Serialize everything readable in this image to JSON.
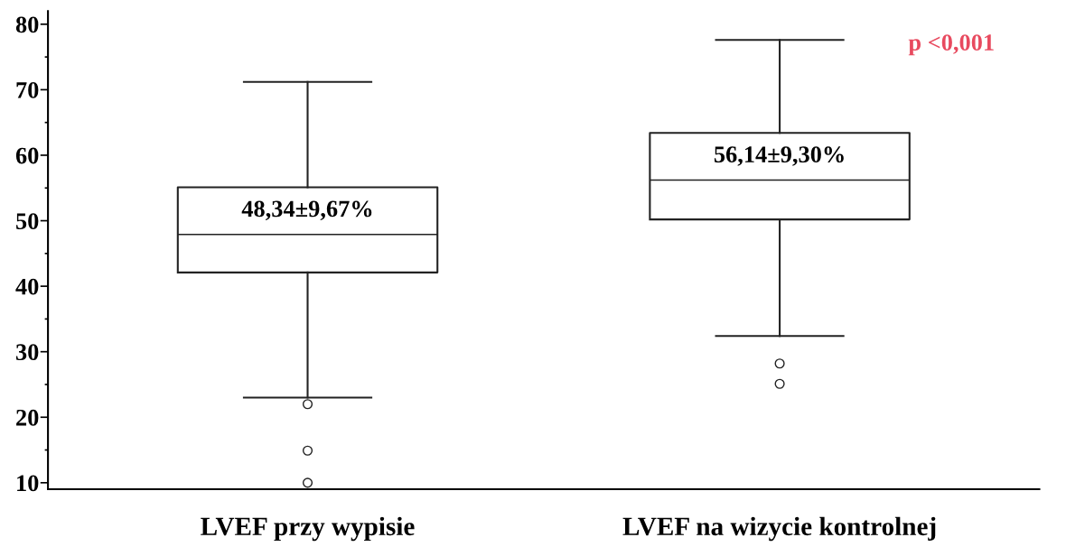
{
  "chart_data": {
    "type": "box",
    "categories": [
      "LVEF przy wypisie",
      "LVEF na wizycie kontrolnej"
    ],
    "boxes": [
      {
        "low": 23,
        "q1": 42.1,
        "median": 47.9,
        "q3": 55.1,
        "high": 71.2,
        "outliers": [
          22,
          14.9,
          10
        ]
      },
      {
        "low": 32.4,
        "q1": 50.2,
        "median": 56.2,
        "q3": 63.4,
        "high": 77.6,
        "outliers": [
          28.2,
          25.1
        ]
      }
    ],
    "ylim": [
      9,
      82
    ],
    "yticks": [
      10,
      {
        "value": 15,
        "label": null
      },
      20,
      {
        "value": 25,
        "label": null
      },
      30,
      {
        "value": 35,
        "label": null
      },
      40,
      {
        "value": 45,
        "label": null
      },
      50,
      {
        "value": 55,
        "label": null
      },
      60,
      {
        "value": 65,
        "label": null
      },
      70,
      {
        "value": 75,
        "label": null
      },
      80
    ],
    "grid": false,
    "annotations": [
      "48,34±9,67%",
      "56,14±9,30%",
      "p <0,001"
    ]
  }
}
